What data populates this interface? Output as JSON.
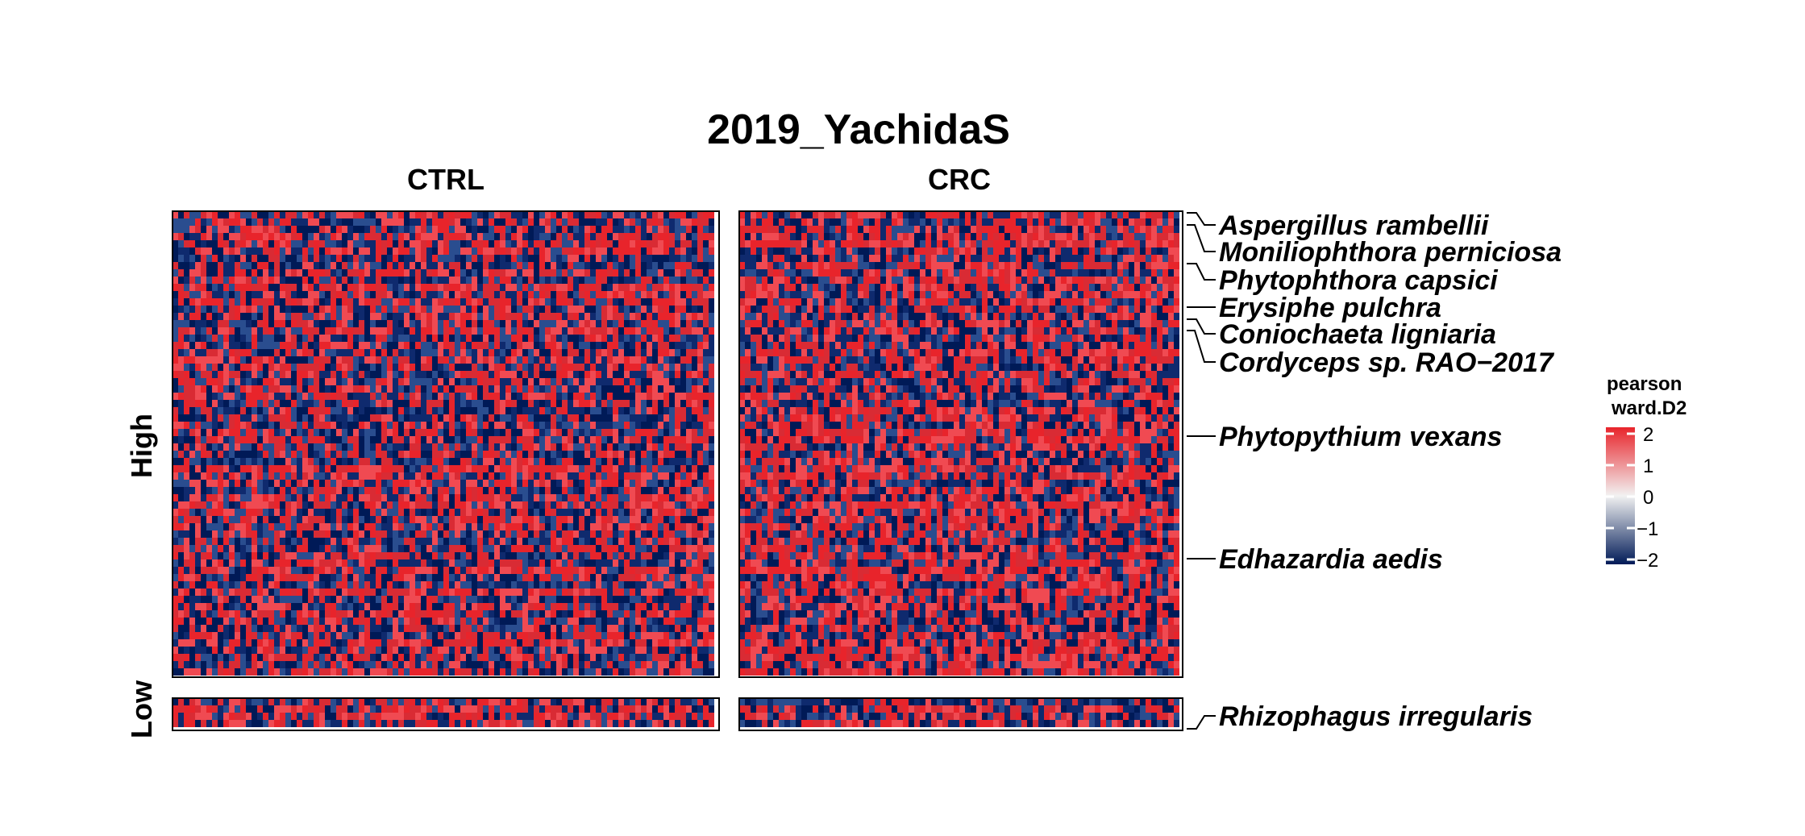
{
  "chart_data": {
    "type": "heatmap",
    "title": "2019_YachidaS",
    "column_groups": [
      "CTRL",
      "CRC"
    ],
    "row_groups": [
      "High",
      "Low"
    ],
    "row_labels_high": [
      "Aspergillus rambellii",
      "Moniliophthora perniciosa",
      "Phytophthora capsici",
      "Erysiphe pulchra",
      "Coniochaeta ligniaria",
      "Cordyceps sp. RAO−2017",
      "Phytopythium vexans",
      "Edhazardia aedis"
    ],
    "row_labels_low": [
      "Rhizophagus irregularis"
    ],
    "legend": {
      "title_line1": "pearson",
      "title_line2": "ward.D2",
      "ticks": [
        "2",
        "1",
        "0",
        "−1",
        "−2"
      ],
      "tick_values": [
        2,
        1,
        0,
        -1,
        -2
      ],
      "range": [
        -2,
        2
      ],
      "colors": {
        "high": "#e8242b",
        "mid": "#f2f2f2",
        "low": "#001a57"
      }
    },
    "matrix_note": "",
    "grid": false,
    "legend_placement": "right"
  }
}
